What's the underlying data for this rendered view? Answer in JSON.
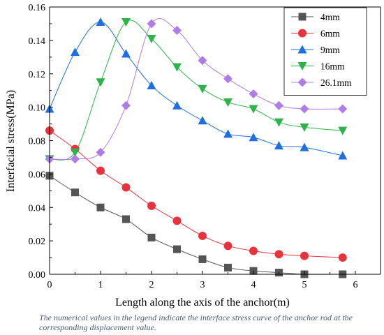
{
  "caption": "The numerical values in the legend indicate the interface stress curve of the anchor rod at the corresponding displacement value.",
  "chart_data": {
    "type": "line",
    "xlabel": "Length along the axis of the anchor(m)",
    "ylabel": "Interfacial stress(MPa)",
    "xlim": [
      0,
      6
    ],
    "ylim": [
      0,
      0.16
    ],
    "xticks": [
      0,
      1,
      2,
      3,
      4,
      5,
      6
    ],
    "yticks": [
      "0.00",
      "0.02",
      "0.04",
      "0.06",
      "0.08",
      "0.10",
      "0.12",
      "0.14",
      "0.16"
    ],
    "grid": false,
    "legend_position": "top-right",
    "series": [
      {
        "name": "4mm",
        "color": "#555555",
        "marker": "square",
        "x": [
          0,
          0.5,
          1,
          1.5,
          2,
          2.5,
          3,
          3.5,
          4,
          4.5,
          5,
          5.75
        ],
        "y": [
          0.059,
          0.049,
          0.04,
          0.033,
          0.022,
          0.015,
          0.009,
          0.004,
          0.002,
          0.001,
          0.0,
          0.0
        ]
      },
      {
        "name": "6mm",
        "color": "#e8323c",
        "marker": "circle",
        "x": [
          0,
          0.5,
          1,
          1.5,
          2,
          2.5,
          3,
          3.5,
          4,
          4.5,
          5,
          5.75
        ],
        "y": [
          0.086,
          0.075,
          0.062,
          0.052,
          0.041,
          0.032,
          0.023,
          0.017,
          0.014,
          0.012,
          0.011,
          0.01
        ]
      },
      {
        "name": "9mm",
        "color": "#1f6fe0",
        "marker": "triangle-up",
        "x": [
          0,
          0.5,
          1,
          1.5,
          2,
          2.5,
          3,
          3.5,
          4,
          4.5,
          5,
          5.75
        ],
        "y": [
          0.099,
          0.133,
          0.151,
          0.132,
          0.113,
          0.101,
          0.092,
          0.084,
          0.082,
          0.077,
          0.076,
          0.071
        ]
      },
      {
        "name": "16mm",
        "color": "#2db34a",
        "marker": "triangle-down",
        "x": [
          0,
          0.5,
          1,
          1.5,
          2,
          2.5,
          3,
          3.5,
          4,
          4.5,
          5,
          5.75
        ],
        "y": [
          0.069,
          0.073,
          0.115,
          0.151,
          0.141,
          0.124,
          0.111,
          0.103,
          0.099,
          0.091,
          0.088,
          0.086
        ]
      },
      {
        "name": "26.1mm",
        "color": "#b07ce8",
        "marker": "diamond",
        "x": [
          0,
          0.5,
          1,
          1.5,
          2,
          2.5,
          3,
          3.5,
          4,
          4.5,
          5,
          5.75
        ],
        "y": [
          0.069,
          0.069,
          0.073,
          0.101,
          0.15,
          0.146,
          0.128,
          0.117,
          0.108,
          0.101,
          0.099,
          0.099
        ]
      }
    ]
  }
}
